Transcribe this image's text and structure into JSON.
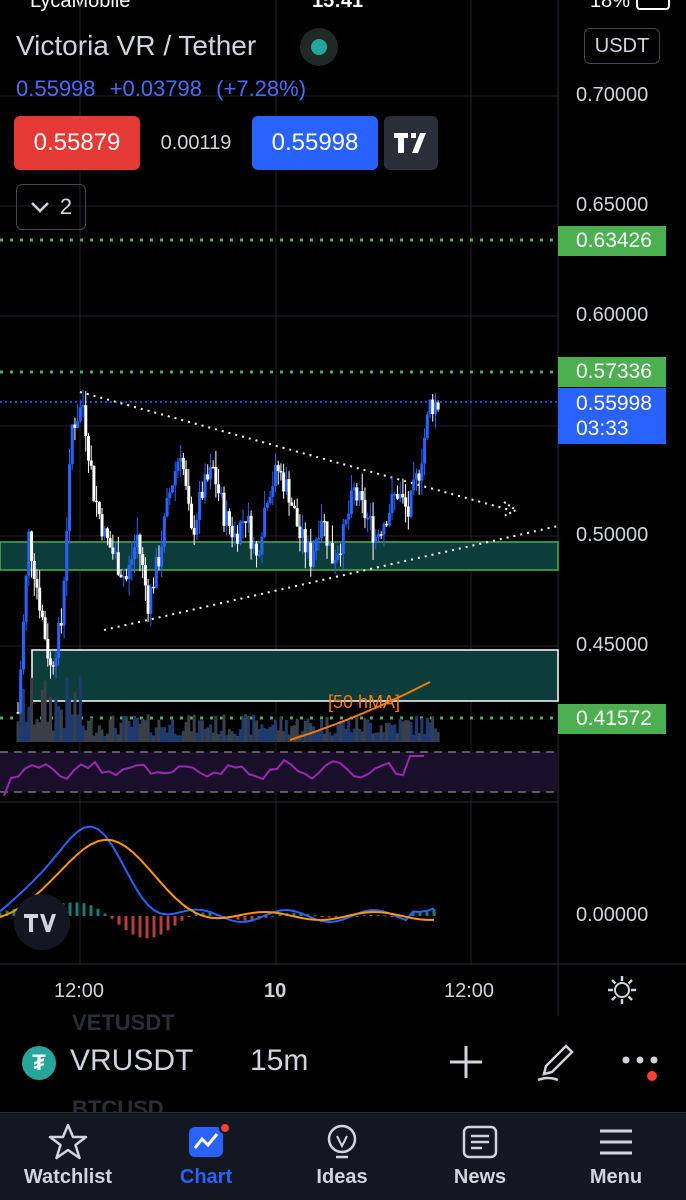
{
  "status_bar": {
    "carrier": "LycaMobile",
    "time": "15:41",
    "battery": "18%"
  },
  "header": {
    "title": "Victoria VR / Tether",
    "last_price": "0.55998",
    "change": "+0.03798",
    "change_pct": "(+7.28%)",
    "currency": "USDT",
    "sell_price": "0.55879",
    "spread": "0.00119",
    "buy_price": "0.55998",
    "indicator_toggle": "2"
  },
  "price_scale": [
    "0.70000",
    "0.65000",
    "0.60000",
    "0.50000",
    "0.45000",
    "0.00000"
  ],
  "price_tags": {
    "level_high": "0.63426",
    "level_mid": "0.57336",
    "current_price": "0.55998",
    "countdown": "03:33",
    "level_low": "0.41572"
  },
  "ma_label": "[50 hMA]",
  "time_axis": [
    "12:00",
    "10",
    "12:00"
  ],
  "colors": {
    "up": "#2962ff",
    "down": "#ffffff",
    "green_level": "#4caf50",
    "zone_fill": "#0d3d3b",
    "rsi": "#9c27b0",
    "macd": "#2962ff",
    "signal": "#ff9800",
    "background": "#000000"
  },
  "background_list": [
    "VETUSDT",
    "BTCUSD"
  ],
  "symbol_bar": {
    "symbol": "VRUSDT",
    "interval": "15m"
  },
  "tabs": [
    {
      "label": "Watchlist",
      "icon": "star-icon"
    },
    {
      "label": "Chart",
      "icon": "chart-icon",
      "active": true
    },
    {
      "label": "Ideas",
      "icon": "bulb-icon"
    },
    {
      "label": "News",
      "icon": "news-icon"
    },
    {
      "label": "Menu",
      "icon": "menu-icon"
    }
  ],
  "chart_data": {
    "type": "candlestick",
    "symbol": "VRUSDT",
    "interval": "15m",
    "y_ticks": [
      0.7,
      0.65,
      0.6,
      0.5,
      0.45
    ],
    "ylim": [
      0.405,
      0.725
    ],
    "x_ticks": [
      "12:00",
      "10",
      "12:00"
    ],
    "close_path": [
      0.42,
      0.5,
      0.47,
      0.44,
      0.46,
      0.55,
      0.56,
      0.52,
      0.5,
      0.49,
      0.48,
      0.5,
      0.47,
      0.49,
      0.52,
      0.54,
      0.5,
      0.52,
      0.53,
      0.51,
      0.5,
      0.51,
      0.49,
      0.52,
      0.53,
      0.52,
      0.5,
      0.49,
      0.51,
      0.49,
      0.5,
      0.52,
      0.51,
      0.5,
      0.51,
      0.52,
      0.51,
      0.53,
      0.56
    ],
    "horizontal_levels": [
      0.63426,
      0.57336,
      0.41572
    ],
    "current_price": 0.55998,
    "support_zones": [
      [
        0.485,
        0.497
      ],
      [
        0.42,
        0.444
      ]
    ],
    "indicators": [
      "[50 hMA]",
      "RSI",
      "MACD"
    ],
    "macd_axis": "0.00000"
  }
}
